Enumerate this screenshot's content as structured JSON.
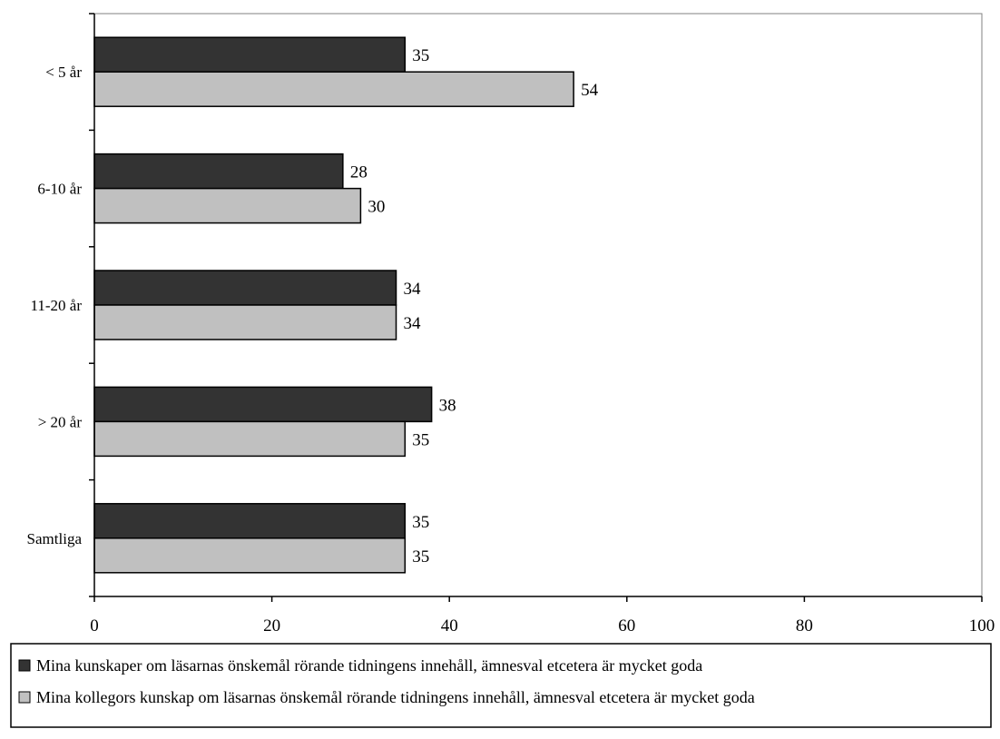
{
  "chart_data": {
    "type": "bar",
    "orientation": "horizontal",
    "categories": [
      "< 5 år",
      "6-10 år",
      "11-20 år",
      "> 20 år",
      "Samtliga"
    ],
    "series": [
      {
        "name": "Mina kunskaper om läsarnas önskemål rörande tidningens innehåll, ämnesval etcetera är mycket goda",
        "color": "#333333",
        "values": [
          35,
          28,
          34,
          38,
          35
        ]
      },
      {
        "name": "Mina kollegors kunskap om läsarnas önskemål rörande tidningens innehåll, ämnesval etcetera är mycket goda",
        "color": "#c0c0c0",
        "values": [
          54,
          30,
          34,
          35,
          35
        ]
      }
    ],
    "xlim": [
      0,
      100
    ],
    "xticks": [
      0,
      20,
      40,
      60,
      80,
      100
    ],
    "title": "",
    "xlabel": "",
    "ylabel": "",
    "grid": false,
    "legend_position": "bottom",
    "data_labels": true
  }
}
